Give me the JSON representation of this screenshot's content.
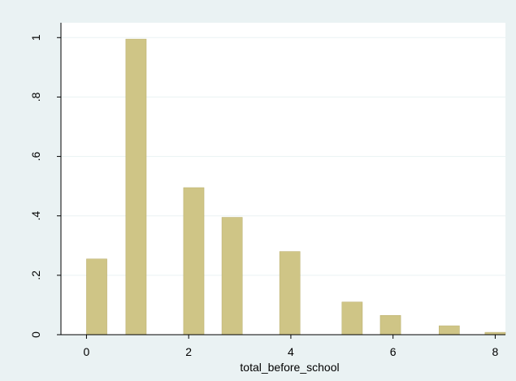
{
  "chart_data": {
    "type": "bar",
    "title": "",
    "xlabel": "total_before_school",
    "ylabel": "",
    "xlim": [
      -0.5,
      8.2
    ],
    "ylim": [
      0,
      1.05
    ],
    "x_ticks": [
      {
        "value": 0,
        "label": "0"
      },
      {
        "value": 2,
        "label": "2"
      },
      {
        "value": 4,
        "label": "4"
      },
      {
        "value": 6,
        "label": "6"
      },
      {
        "value": 8,
        "label": "8"
      }
    ],
    "y_ticks": [
      {
        "value": 0,
        "label": "0"
      },
      {
        "value": 0.2,
        "label": ".2"
      },
      {
        "value": 0.4,
        "label": ".4"
      },
      {
        "value": 0.6,
        "label": ".6"
      },
      {
        "value": 0.8,
        "label": ".8"
      },
      {
        "value": 1,
        "label": "1"
      }
    ],
    "bar_width": 0.4,
    "x": [
      0.2,
      0.97,
      2.1,
      2.85,
      3.98,
      5.2,
      5.95,
      7.1,
      8.0
    ],
    "values": [
      0.255,
      0.995,
      0.495,
      0.395,
      0.28,
      0.11,
      0.065,
      0.03,
      0.008
    ],
    "grid": true,
    "legend": "none",
    "colors": {
      "bar_fill": "#cfc586",
      "bar_stroke": "#b8ad6b",
      "background": "#eaf2f3",
      "plot_background": "#ffffff",
      "grid": "#eaf2f3",
      "axis": "#000000"
    }
  }
}
